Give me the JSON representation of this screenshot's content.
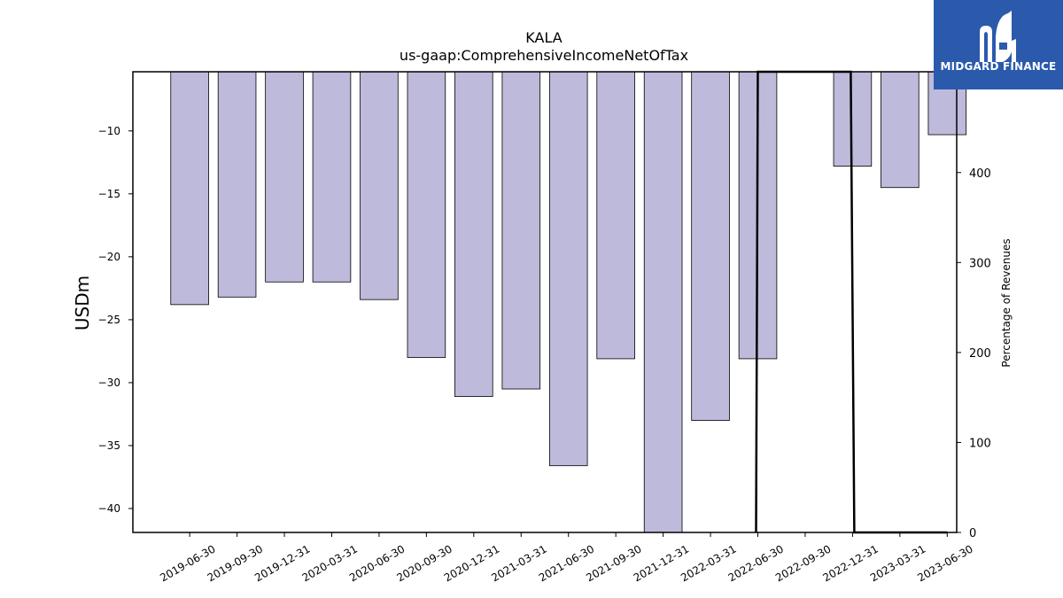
{
  "chart_data": {
    "type": "bar",
    "title": "KALA",
    "subtitle": "us-gaap:ComprehensiveIncomeNetOfTax",
    "ylabel": "USDm",
    "y2label": "Percentage of Revenues",
    "categories": [
      "2019-06-30",
      "2019-09-30",
      "2019-12-31",
      "2020-03-31",
      "2020-06-30",
      "2020-09-30",
      "2020-12-31",
      "2021-03-31",
      "2021-06-30",
      "2021-09-30",
      "2021-12-31",
      "2022-03-31",
      "2022-06-30",
      "2022-09-30",
      "2022-12-31",
      "2023-03-31",
      "2023-06-30"
    ],
    "values": [
      -23.8,
      -23.2,
      -22.0,
      -22.0,
      -23.4,
      -28.0,
      -31.1,
      -30.5,
      -36.6,
      -28.1,
      -41.9,
      -33.0,
      -28.1,
      null,
      -12.8,
      -14.5,
      -10.3
    ],
    "ylim": [
      -41.9,
      -5.3
    ],
    "yticks": [
      -10,
      -15,
      -20,
      -25,
      -30,
      -35,
      -40
    ],
    "y2lim": [
      0,
      512
    ],
    "y2ticks": [
      0,
      100,
      200,
      300,
      400
    ],
    "line_series": {
      "x": [
        "2022-06-30",
        "2022-06-30",
        "2022-12-31",
        "2022-12-31",
        "2023-03-31",
        "2023-06-30"
      ],
      "values": [
        0,
        512,
        512,
        0,
        0,
        0
      ]
    },
    "bar_color": "#bebadb",
    "line_color": "#000000",
    "grid": false
  },
  "logo": {
    "text": "MIDGARD FINANCE",
    "color": "#2b5aad"
  }
}
